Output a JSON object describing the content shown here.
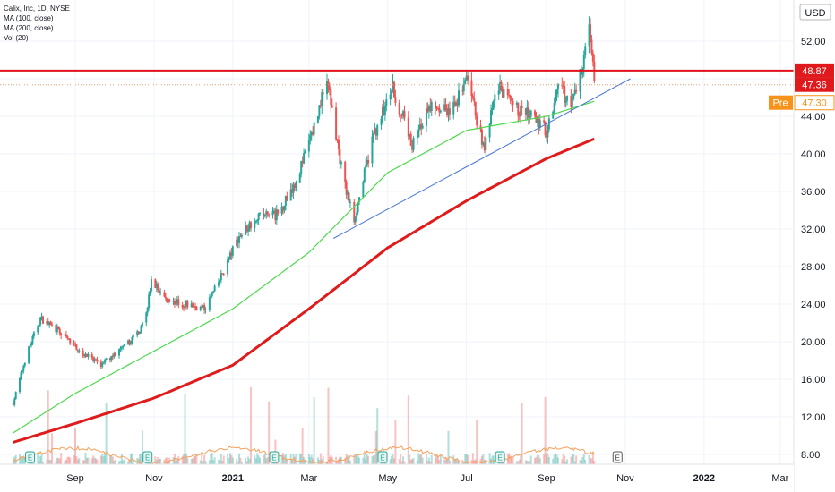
{
  "legend": {
    "symbol_line": "Calix, Inc, 1D, NYSE",
    "ma100": "MA (100, close)",
    "ma200": "MA (200, close)",
    "vol": "Vol (20)"
  },
  "currency": "USD",
  "colors": {
    "up": "#26a69a",
    "down": "#ef5350",
    "ma100": "#4cd94c",
    "ma200": "#e01b1b",
    "trendline": "#4a77d9",
    "resistance": "#e0101c",
    "price_tag": "#e0191c",
    "pre_tag": "#f7931a",
    "vol_ma": "#f5a25d"
  },
  "chart_data": {
    "type": "candlestick",
    "yticks": [
      52,
      48,
      44,
      40,
      36,
      32,
      28,
      24,
      20,
      16,
      12,
      8
    ],
    "ylabels": [
      "52.00",
      "44.00",
      "40.00",
      "36.00",
      "32.00",
      "28.00",
      "24.00",
      "20.00",
      "16.00",
      "12.00",
      "8.00"
    ],
    "xlabels": [
      {
        "text": "Sep",
        "date": "2020-09-01",
        "bold": false
      },
      {
        "text": "Nov",
        "date": "2020-11-01",
        "bold": false
      },
      {
        "text": "2021",
        "date": "2021-01-01",
        "bold": true
      },
      {
        "text": "Mar",
        "date": "2021-03-01",
        "bold": false
      },
      {
        "text": "May",
        "date": "2021-05-01",
        "bold": false
      },
      {
        "text": "Jul",
        "date": "2021-07-01",
        "bold": false
      },
      {
        "text": "Sep",
        "date": "2021-09-01",
        "bold": false
      },
      {
        "text": "Nov",
        "date": "2021-11-01",
        "bold": false
      },
      {
        "text": "2022",
        "date": "2022-01-01",
        "bold": true
      },
      {
        "text": "Mar",
        "date": "2022-03-01",
        "bold": false
      }
    ],
    "price_anchors": [
      [
        "2020-07-15",
        13.5
      ],
      [
        "2020-07-25",
        18.5
      ],
      [
        "2020-08-05",
        22.5
      ],
      [
        "2020-08-20",
        21.0
      ],
      [
        "2020-09-05",
        19.0
      ],
      [
        "2020-09-20",
        17.5
      ],
      [
        "2020-10-10",
        19.5
      ],
      [
        "2020-10-25",
        22.0
      ],
      [
        "2020-10-30",
        26.5
      ],
      [
        "2020-11-10",
        24.5
      ],
      [
        "2020-11-25",
        24.0
      ],
      [
        "2020-12-10",
        23.5
      ],
      [
        "2020-12-20",
        26.0
      ],
      [
        "2021-01-05",
        31.0
      ],
      [
        "2021-01-20",
        33.5
      ],
      [
        "2021-02-05",
        33.5
      ],
      [
        "2021-02-20",
        37.5
      ],
      [
        "2021-03-05",
        43.0
      ],
      [
        "2021-03-15",
        48.0
      ],
      [
        "2021-03-28",
        37.0
      ],
      [
        "2021-04-05",
        33.0
      ],
      [
        "2021-04-20",
        42.0
      ],
      [
        "2021-05-05",
        47.0
      ],
      [
        "2021-05-20",
        41.0
      ],
      [
        "2021-06-05",
        45.5
      ],
      [
        "2021-06-20",
        44.5
      ],
      [
        "2021-07-01",
        48.0
      ],
      [
        "2021-07-15",
        40.5
      ],
      [
        "2021-07-25",
        47.5
      ],
      [
        "2021-08-05",
        45.0
      ],
      [
        "2021-08-20",
        44.0
      ],
      [
        "2021-09-01",
        42.5
      ],
      [
        "2021-09-10",
        47.5
      ],
      [
        "2021-09-20",
        45.0
      ],
      [
        "2021-09-28",
        49.0
      ],
      [
        "2021-10-04",
        54.5
      ],
      [
        "2021-10-08",
        47.4
      ]
    ],
    "ma100_anchors": [
      [
        "2020-07-15",
        10.3
      ],
      [
        "2020-09-01",
        14.5
      ],
      [
        "2020-11-01",
        19.0
      ],
      [
        "2021-01-01",
        23.5
      ],
      [
        "2021-03-01",
        29.5
      ],
      [
        "2021-05-01",
        38.0
      ],
      [
        "2021-07-01",
        42.5
      ],
      [
        "2021-09-01",
        44.0
      ],
      [
        "2021-10-08",
        45.6
      ]
    ],
    "ma200_anchors": [
      [
        "2020-07-15",
        9.3
      ],
      [
        "2020-09-01",
        11.3
      ],
      [
        "2020-11-01",
        14.0
      ],
      [
        "2021-01-01",
        17.5
      ],
      [
        "2021-03-01",
        23.5
      ],
      [
        "2021-05-01",
        30.0
      ],
      [
        "2021-07-01",
        35.0
      ],
      [
        "2021-09-01",
        39.5
      ],
      [
        "2021-10-08",
        41.6
      ]
    ],
    "resistance_level": 48.87,
    "dotted_level": 47.36,
    "trendline": {
      "start": [
        "2021-03-20",
        31.0
      ],
      "end": [
        "2021-11-05",
        48.0
      ]
    },
    "price_labels": {
      "resistance": "48.87",
      "last": "47.36",
      "pre_label": "Pre",
      "pre": "47.30"
    },
    "earnings_markers": [
      "2020-07-28",
      "2020-10-27",
      "2021-02-02",
      "2021-04-27",
      "2021-07-27",
      "2021-10-26"
    ],
    "earnings_label": "E"
  }
}
